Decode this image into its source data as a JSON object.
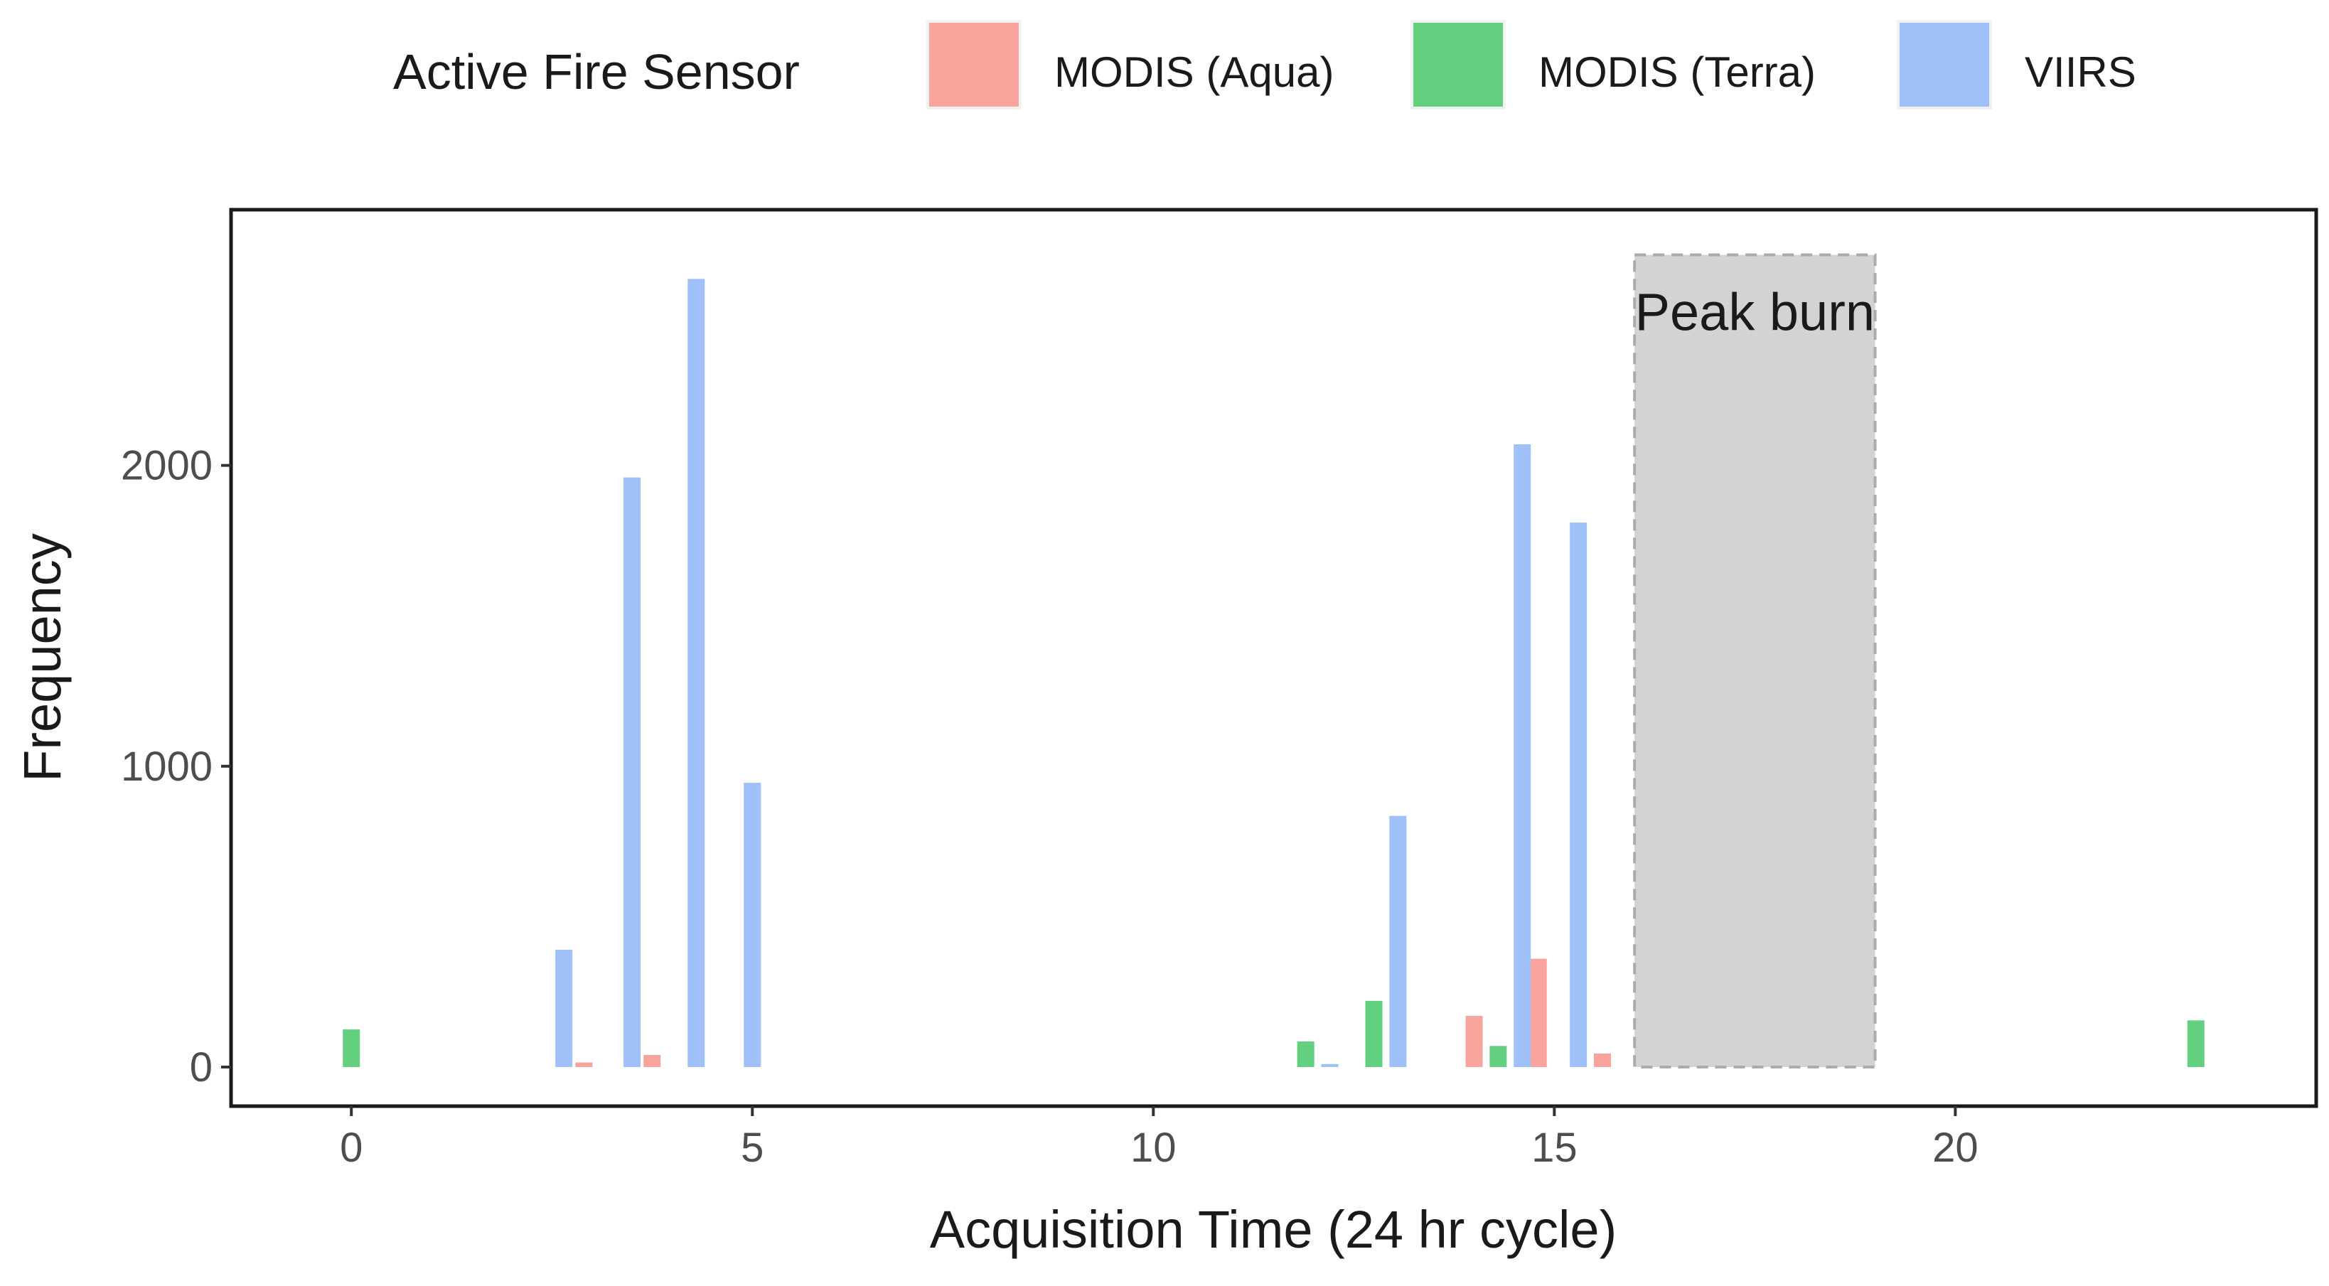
{
  "chart_data": {
    "type": "bar",
    "xlabel": "Acquisition Time (24 hr cycle)",
    "ylabel": "Frequency",
    "xlim": [
      -1.5,
      24.5
    ],
    "ylim": [
      -130,
      2850
    ],
    "x_ticks": [
      0,
      5,
      10,
      15,
      20
    ],
    "y_ticks": [
      0,
      1000,
      2000
    ],
    "grid": false,
    "legend": {
      "title": "Active Fire Sensor",
      "position": "top"
    },
    "series": [
      {
        "name": "MODIS (Aqua)",
        "color": "#F8A49D",
        "points": [
          {
            "x": 2.9,
            "y": 15
          },
          {
            "x": 3.75,
            "y": 40
          },
          {
            "x": 14.0,
            "y": 170
          },
          {
            "x": 14.8,
            "y": 360
          },
          {
            "x": 15.6,
            "y": 45
          }
        ]
      },
      {
        "name": "MODIS (Terra)",
        "color": "#62D07E",
        "points": [
          {
            "x": 0.0,
            "y": 125
          },
          {
            "x": 11.9,
            "y": 85
          },
          {
            "x": 12.75,
            "y": 220
          },
          {
            "x": 14.3,
            "y": 70
          },
          {
            "x": 23.0,
            "y": 155
          }
        ]
      },
      {
        "name": "VIIRS",
        "color": "#9FC0F9",
        "points": [
          {
            "x": 2.65,
            "y": 390
          },
          {
            "x": 3.5,
            "y": 1960
          },
          {
            "x": 4.3,
            "y": 2620
          },
          {
            "x": 5.0,
            "y": 945
          },
          {
            "x": 12.2,
            "y": 10
          },
          {
            "x": 13.05,
            "y": 835
          },
          {
            "x": 14.6,
            "y": 2070
          },
          {
            "x": 15.3,
            "y": 1810
          }
        ]
      }
    ],
    "annotation": {
      "label": "Peak burn",
      "x_range": [
        16,
        19
      ],
      "y_range": [
        0,
        2700
      ],
      "fill": "#D3D3D3",
      "border": "#ABABAB"
    }
  }
}
